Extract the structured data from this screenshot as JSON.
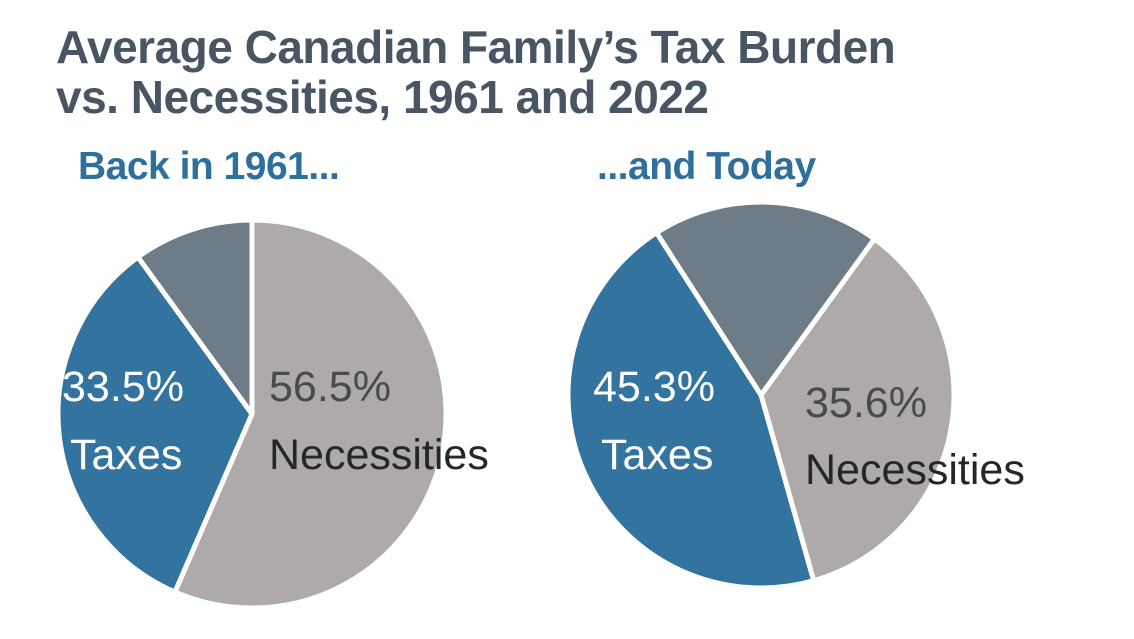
{
  "title_line1": "Average Canadian Family’s Tax Burden",
  "title_line2": "vs. Necessities, 1961 and 2022",
  "colors": {
    "taxes": "#32739f",
    "necessities": "#aeaaa9",
    "other": "#6d7c87",
    "title": "#4a5563",
    "subtitle": "#2f6f9c",
    "label_dark": "#262626",
    "label_pct_gray": "#4a4a4a",
    "label_light": "#ffffff"
  },
  "chart_data": [
    {
      "type": "pie",
      "title": "Back in 1961...",
      "slices": [
        {
          "key": "necessities",
          "percent_label": "56.5%",
          "name": "Necessities",
          "value": 56.5
        },
        {
          "key": "taxes",
          "percent_label": "33.5%",
          "name": "Taxes",
          "value": 33.5
        },
        {
          "key": "other",
          "percent_label": "",
          "name": "",
          "value": 10.0
        }
      ]
    },
    {
      "type": "pie",
      "title": "...and Today",
      "slices": [
        {
          "key": "necessities",
          "percent_label": "35.6%",
          "name": "Necessities",
          "value": 35.6
        },
        {
          "key": "taxes",
          "percent_label": "45.3%",
          "name": "Taxes",
          "value": 45.3
        },
        {
          "key": "other",
          "percent_label": "",
          "name": "",
          "value": 19.1
        }
      ]
    }
  ]
}
